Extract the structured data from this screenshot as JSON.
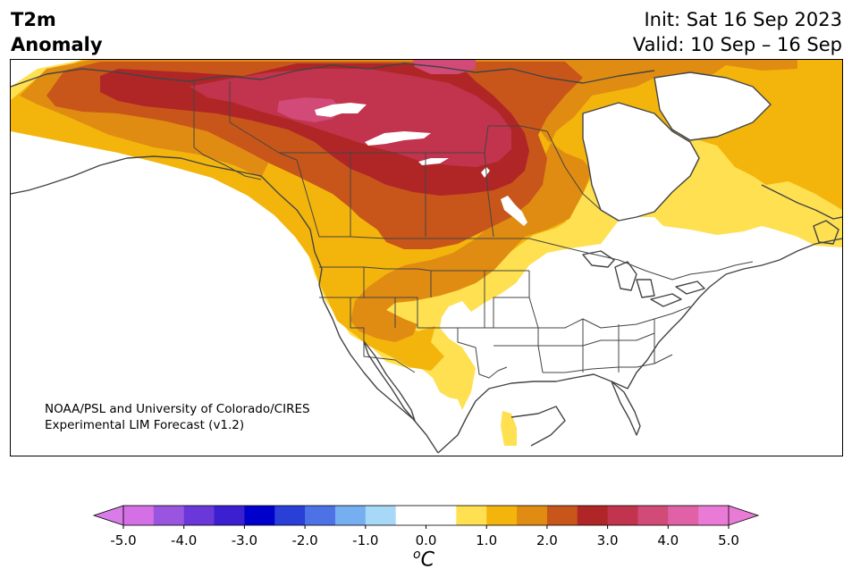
{
  "title": {
    "line1": "T2m",
    "line2": "Anomaly"
  },
  "dates": {
    "init": "Init: Sat 16 Sep 2023",
    "valid": "Valid: 10 Sep – 16 Sep"
  },
  "credit": {
    "line1": "NOAA/PSL and University of Colorado/CIRES",
    "line2": "Experimental LIM Forecast (v1.2)"
  },
  "colorbar": {
    "unit_base": "o",
    "unit_letter": "C",
    "min": -5.0,
    "max": 5.0,
    "step": 0.5,
    "tick_labels": [
      "-5.0",
      "-4.0",
      "-3.0",
      "-2.0",
      "-1.0",
      "0.0",
      "1.0",
      "2.0",
      "3.0",
      "4.0",
      "5.0"
    ],
    "colors": [
      "#d46fe6",
      "#9a55e0",
      "#6a37d8",
      "#3b1fd0",
      "#0000cd",
      "#2a3ed8",
      "#4d72e6",
      "#76aef2",
      "#a8d8f8",
      "#ffffff",
      "#ffffff",
      "#fee050",
      "#f3b50c",
      "#e08c13",
      "#c8561a",
      "#b02626",
      "#c2334d",
      "#d24a78",
      "#e061a6",
      "#e97bd6"
    ],
    "extend_low_color": "#d87de8",
    "extend_high_color": "#e97bd6"
  },
  "colors": {
    "anom_05": "#fee050",
    "anom_10": "#f3b50c",
    "anom_15": "#e08c13",
    "anom_20": "#c8561a",
    "anom_25": "#b02626",
    "anom_30": "#c2334d",
    "anom_35": "#d24a78",
    "coast": "#444444"
  }
}
